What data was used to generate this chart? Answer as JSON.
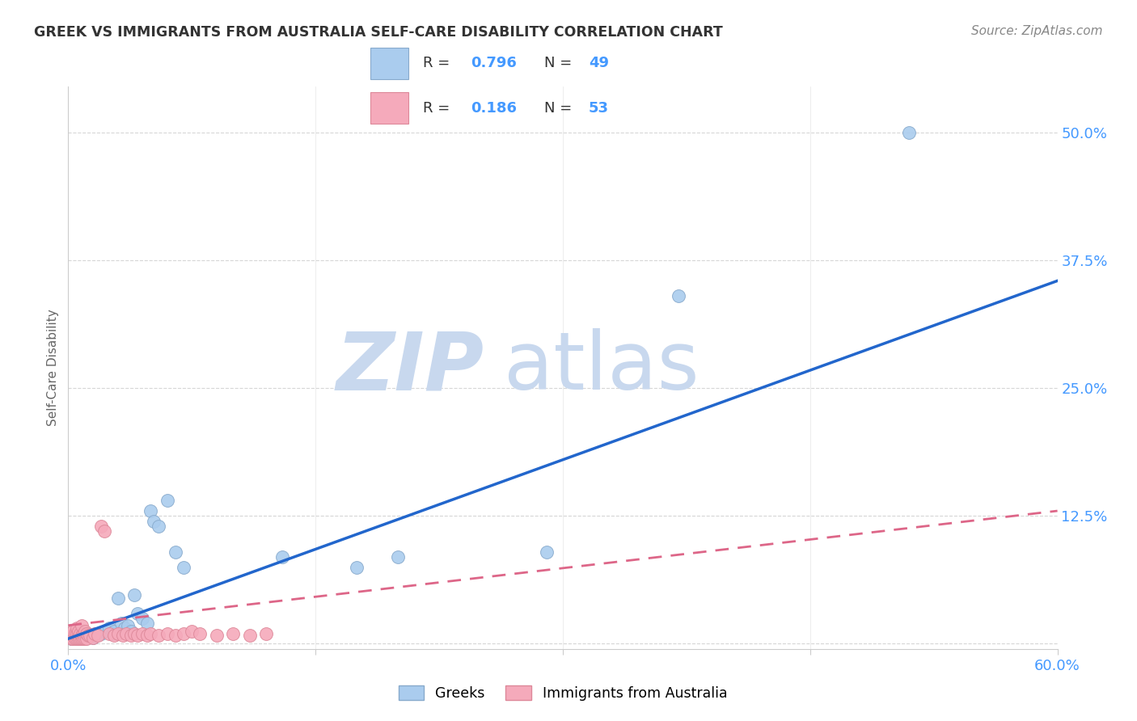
{
  "title": "GREEK VS IMMIGRANTS FROM AUSTRALIA SELF-CARE DISABILITY CORRELATION CHART",
  "source": "Source: ZipAtlas.com",
  "ylabel": "Self-Care Disability",
  "xlim": [
    0.0,
    0.6
  ],
  "ylim": [
    -0.005,
    0.545
  ],
  "yticks": [
    0.0,
    0.125,
    0.25,
    0.375,
    0.5
  ],
  "ytick_labels": [
    "",
    "12.5%",
    "25.0%",
    "37.5%",
    "50.0%"
  ],
  "xtick_labels": [
    "0.0%",
    "",
    "",
    "",
    "60.0%"
  ],
  "xticks": [
    0.0,
    0.15,
    0.3,
    0.45,
    0.6
  ],
  "background_color": "#ffffff",
  "greek_color": "#aaccee",
  "greek_edge_color": "#88aacc",
  "immigrant_color": "#f5aabb",
  "immigrant_edge_color": "#dd8899",
  "trendline_greek_color": "#2266cc",
  "trendline_immigrant_color": "#dd6688",
  "R_greek": 0.796,
  "N_greek": 49,
  "R_immigrant": 0.186,
  "N_immigrant": 53,
  "legend_label_greek": "Greeks",
  "legend_label_immigrant": "Immigrants from Australia",
  "watermark_zip": "ZIP",
  "watermark_atlas": "atlas",
  "watermark_color_zip": "#c8d8ee",
  "watermark_color_atlas": "#c8d8ee",
  "greek_x": [
    0.002,
    0.003,
    0.004,
    0.005,
    0.005,
    0.006,
    0.007,
    0.007,
    0.008,
    0.008,
    0.009,
    0.01,
    0.01,
    0.011,
    0.012,
    0.013,
    0.014,
    0.015,
    0.016,
    0.017,
    0.018,
    0.019,
    0.02,
    0.022,
    0.023,
    0.025,
    0.027,
    0.028,
    0.03,
    0.032,
    0.034,
    0.036,
    0.038,
    0.04,
    0.042,
    0.045,
    0.048,
    0.05,
    0.052,
    0.055,
    0.06,
    0.065,
    0.07,
    0.13,
    0.175,
    0.2,
    0.29,
    0.37,
    0.51
  ],
  "greek_y": [
    0.005,
    0.007,
    0.006,
    0.005,
    0.008,
    0.007,
    0.005,
    0.009,
    0.006,
    0.01,
    0.007,
    0.005,
    0.01,
    0.008,
    0.007,
    0.009,
    0.008,
    0.006,
    0.008,
    0.01,
    0.009,
    0.011,
    0.01,
    0.012,
    0.013,
    0.015,
    0.01,
    0.012,
    0.045,
    0.02,
    0.015,
    0.018,
    0.012,
    0.048,
    0.03,
    0.025,
    0.02,
    0.13,
    0.12,
    0.115,
    0.14,
    0.09,
    0.075,
    0.085,
    0.075,
    0.085,
    0.09,
    0.34,
    0.5
  ],
  "immigrant_x": [
    0.002,
    0.002,
    0.003,
    0.003,
    0.003,
    0.004,
    0.004,
    0.005,
    0.005,
    0.005,
    0.005,
    0.006,
    0.006,
    0.006,
    0.007,
    0.007,
    0.008,
    0.008,
    0.008,
    0.009,
    0.009,
    0.01,
    0.01,
    0.011,
    0.011,
    0.012,
    0.013,
    0.015,
    0.016,
    0.018,
    0.02,
    0.022,
    0.025,
    0.028,
    0.03,
    0.033,
    0.035,
    0.038,
    0.04,
    0.042,
    0.045,
    0.048,
    0.05,
    0.055,
    0.06,
    0.065,
    0.07,
    0.075,
    0.08,
    0.09,
    0.1,
    0.11,
    0.12
  ],
  "immigrant_y": [
    0.005,
    0.008,
    0.005,
    0.008,
    0.012,
    0.005,
    0.01,
    0.005,
    0.008,
    0.01,
    0.015,
    0.005,
    0.008,
    0.012,
    0.005,
    0.01,
    0.005,
    0.008,
    0.018,
    0.005,
    0.01,
    0.005,
    0.012,
    0.005,
    0.01,
    0.008,
    0.008,
    0.006,
    0.01,
    0.008,
    0.115,
    0.11,
    0.01,
    0.008,
    0.01,
    0.008,
    0.01,
    0.008,
    0.01,
    0.008,
    0.01,
    0.008,
    0.01,
    0.008,
    0.01,
    0.008,
    0.01,
    0.012,
    0.01,
    0.008,
    0.01,
    0.008,
    0.01
  ]
}
